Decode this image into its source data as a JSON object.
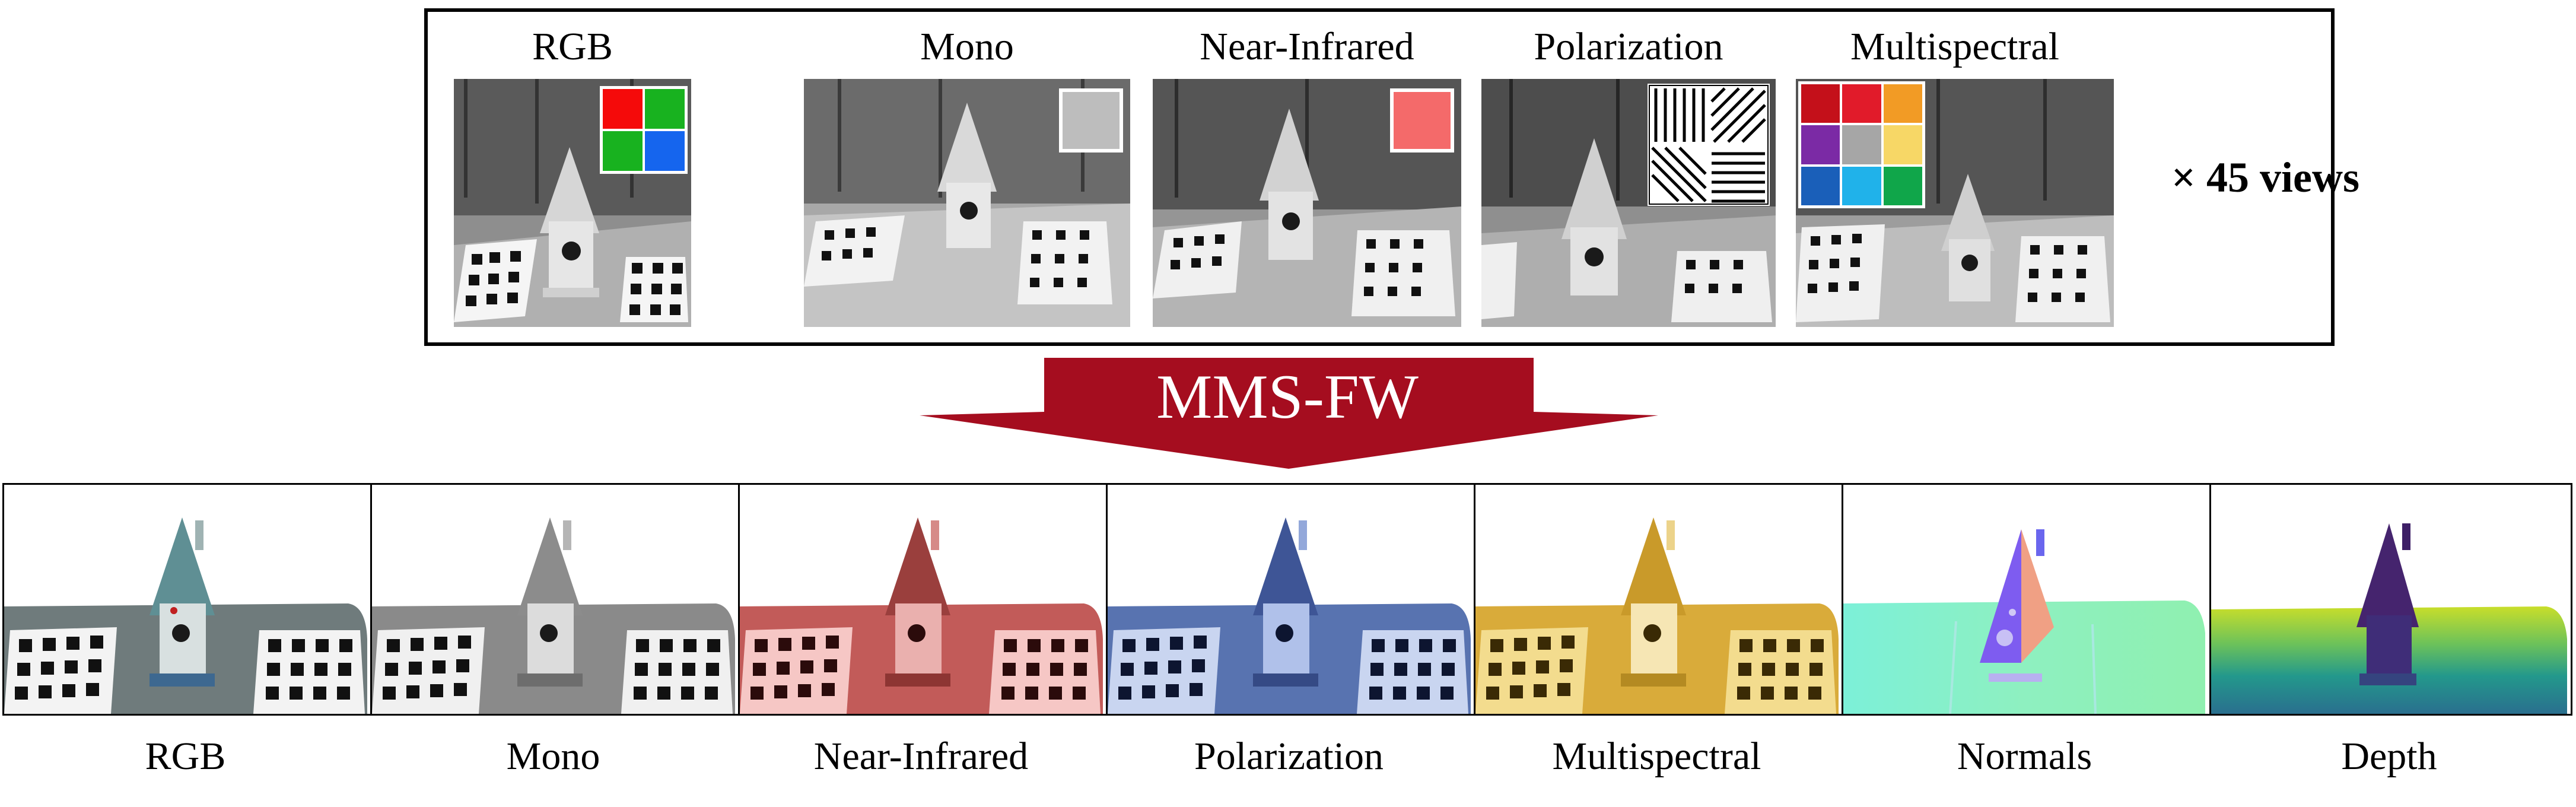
{
  "input": {
    "views_label": "× 45 views",
    "columns": [
      {
        "label": "RGB"
      },
      {
        "label": "Mono"
      },
      {
        "label": "Near-Infrared"
      },
      {
        "label": "Polarization"
      },
      {
        "label": "Multispectral"
      }
    ],
    "filters": {
      "rgb_bayer": [
        "#f50a0a",
        "#18b21f",
        "#18b21f",
        "#1565ee"
      ],
      "mono": "#bdbdbd",
      "nir": "#f46a6a",
      "multispectral": [
        "#c4101a",
        "#e11b2a",
        "#f29b25",
        "#7b2aa5",
        "#a6a6a6",
        "#f7d766",
        "#1a5fb9",
        "#20b2ea",
        "#10a64a"
      ]
    }
  },
  "method": {
    "label": "MMS-FW",
    "color": "#a50d1f"
  },
  "output": {
    "columns": [
      {
        "label": "RGB"
      },
      {
        "label": "Mono"
      },
      {
        "label": "Near-Infrared"
      },
      {
        "label": "Polarization"
      },
      {
        "label": "Multispectral"
      },
      {
        "label": "Normals"
      },
      {
        "label": "Depth"
      }
    ],
    "tints": [
      "#7a8a8c",
      "#8c8c8c",
      "#c05a58",
      "#5b78b8",
      "#d8ac38",
      "#86f0c8",
      "#2b8c8c"
    ]
  }
}
